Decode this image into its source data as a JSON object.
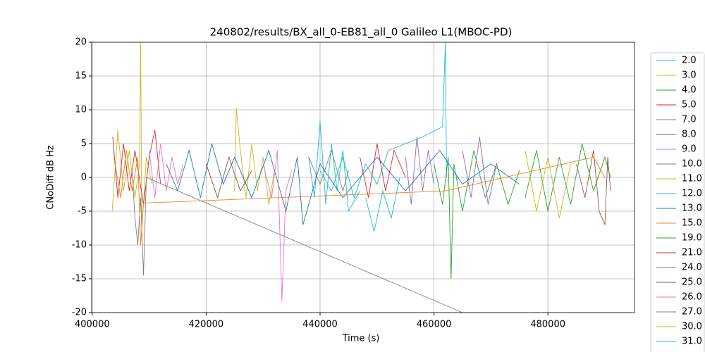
{
  "chart_data": {
    "type": "line",
    "title": "240802/results/BX_all_0-EB81_all_0 Galileo L1(MBOC-PD)",
    "x_label": "Time (s)",
    "y_label": "CNoDiff dB Hz",
    "xlim": [
      399900,
      495200
    ],
    "ylim": [
      -20,
      20
    ],
    "xticks": [
      400000,
      420000,
      440000,
      460000,
      480000
    ],
    "yticks": [
      -20,
      -15,
      -10,
      -5,
      0,
      5,
      10,
      15,
      20
    ],
    "grid": true,
    "legend": "right",
    "series": [
      {
        "name": "2.0",
        "color": "#17becf",
        "x": [
          440000,
          442000,
          444000,
          446000,
          448000,
          450000,
          452000,
          455000,
          458000,
          461500,
          462000,
          462200
        ],
        "values": [
          1,
          -2,
          3,
          -3,
          2,
          -1,
          4,
          5,
          6,
          7.5,
          20,
          0
        ]
      },
      {
        "name": "3.0",
        "color": "#bcbd22",
        "x": [
          403500,
          404500,
          405500,
          406500,
          407500,
          408300,
          408500,
          408700,
          409500,
          410500
        ],
        "values": [
          -5,
          7,
          -2,
          4,
          -3,
          2,
          20,
          -8,
          3,
          -1
        ]
      },
      {
        "name": "4.0",
        "color": "#2ca02c",
        "x": [
          460000,
          461500,
          462500,
          463000,
          463500,
          465000,
          467000,
          469000,
          471000,
          473000,
          475000
        ],
        "values": [
          2,
          -4,
          3,
          -15,
          2,
          -5,
          4,
          -3,
          2,
          -4,
          1
        ]
      },
      {
        "name": "5.0",
        "color": "#d62728",
        "x": [
          403600,
          404500,
          405500,
          406500,
          407500,
          409000,
          410000,
          411000,
          412000
        ],
        "values": [
          6,
          -3,
          5,
          -2,
          4,
          -4,
          3,
          7,
          -1
        ]
      },
      {
        "name": "7.0",
        "color": "#9467bd",
        "x": [
          455000,
          456000,
          457000,
          458000,
          459000,
          460000
        ],
        "values": [
          3,
          -4,
          6,
          -2,
          4,
          -1
        ]
      },
      {
        "name": "8.0",
        "color": "#8c564b",
        "x": [
          485000,
          486500,
          488000,
          489000,
          490000,
          490500,
          491000
        ],
        "values": [
          2,
          -3,
          4,
          -5,
          -7,
          3,
          -2
        ]
      },
      {
        "name": "9.0",
        "color": "#e377c2",
        "x": [
          410000,
          411000,
          412000,
          413000,
          414000,
          415000,
          416000
        ],
        "values": [
          4,
          -3,
          5,
          -2,
          3,
          -1,
          2
        ]
      },
      {
        "name": "10.0",
        "color": "#7f7f7f",
        "x": [
          407000,
          407500,
          408000,
          408500,
          409000,
          409500,
          465000
        ],
        "values": [
          1,
          -6,
          -10,
          -3,
          -14.5,
          0,
          -20
        ]
      },
      {
        "name": "11.0",
        "color": "#bcbd22",
        "x": [
          425000,
          425300,
          426000,
          427000,
          428000,
          429000,
          430000,
          431000,
          432000
        ],
        "values": [
          -2,
          10.3,
          4,
          -3,
          5,
          -2,
          3,
          -4,
          1
        ]
      },
      {
        "name": "12.0",
        "color": "#17becf",
        "x": [
          438000,
          439000,
          440000,
          441000,
          442000,
          443000,
          444000,
          445000,
          447000
        ],
        "values": [
          3,
          -3,
          8.3,
          -4,
          5,
          -2,
          4,
          -5,
          -2
        ]
      },
      {
        "name": "13.0",
        "color": "#1f77b4",
        "x": [
          413000,
          415000,
          417000,
          419000,
          421000,
          423000,
          425000,
          428000,
          431000,
          434000,
          436000,
          437000,
          440000,
          444000,
          450000,
          455000,
          461000,
          465000,
          470000,
          475000
        ],
        "values": [
          2,
          -2,
          4,
          -3,
          5,
          -1,
          3,
          -3,
          4,
          -5,
          3,
          -7,
          2,
          -3,
          3,
          -2,
          4,
          -1,
          2,
          -1
        ]
      },
      {
        "name": "15.0",
        "color": "#ff7f0e",
        "x": [
          404000,
          405000,
          406000,
          407000,
          408000,
          408500,
          409000,
          462000,
          488000,
          490000
        ],
        "values": [
          2,
          -3,
          4,
          -2,
          3,
          -10,
          -3.8,
          -2,
          3,
          0
        ]
      },
      {
        "name": "19.0",
        "color": "#2ca02c",
        "x": [
          476000,
          478000,
          480000,
          482000,
          484000,
          486000,
          488000,
          490000,
          491000
        ],
        "values": [
          -3,
          4,
          -5,
          3,
          -4,
          5,
          -2,
          3,
          0
        ]
      },
      {
        "name": "21.0",
        "color": "#d62728",
        "x": [
          447000,
          448500,
          450000,
          451500,
          453000,
          455000
        ],
        "values": [
          3,
          -3,
          5,
          -2,
          4,
          0
        ]
      },
      {
        "name": "24.0",
        "color": "#9467bd",
        "x": [
          465000,
          466500,
          468000,
          469500,
          471000
        ],
        "values": [
          4,
          -3,
          6,
          -4,
          2
        ]
      },
      {
        "name": "25.0",
        "color": "#8c564b",
        "x": [
          420000,
          422000,
          424000,
          426000,
          428000
        ],
        "values": [
          2,
          -3,
          3,
          -2,
          1
        ]
      },
      {
        "name": "26.0",
        "color": "#e377c2",
        "x": [
          430000,
          431500,
          432500,
          433000,
          433300,
          434000,
          435000
        ],
        "values": [
          2,
          -3,
          4,
          -10,
          -18.3,
          -2,
          1
        ]
      },
      {
        "name": "27.0",
        "color": "#7f7f7f",
        "x": [
          438000,
          440000,
          442000,
          444000,
          445000
        ],
        "values": [
          3,
          -1,
          4,
          -2,
          1
        ]
      },
      {
        "name": "30.0",
        "color": "#bcbd22",
        "x": [
          476000,
          478000,
          480000,
          482000,
          484000
        ],
        "values": [
          4,
          -5,
          3,
          -6,
          2
        ]
      },
      {
        "name": "31.0",
        "color": "#17becf",
        "x": [
          448000,
          449500,
          451000,
          452500,
          454000
        ],
        "values": [
          -3,
          -8,
          -2,
          -6,
          0
        ]
      }
    ]
  }
}
